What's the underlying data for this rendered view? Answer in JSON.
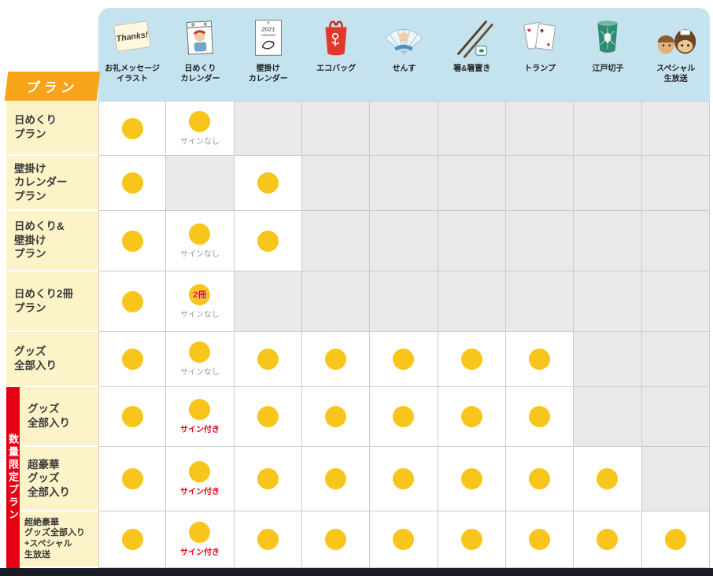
{
  "plan_tag": "プラン",
  "limited_band_label": "数量限定プラン",
  "legend": {
    "no_sign": "サインなし",
    "with_sign": "サイン付き",
    "two_copies": "2冊"
  },
  "colors": {
    "dot": "#F8C51C",
    "accent_red": "#E60012",
    "plan_tag_bg": "#F8A41B",
    "header_bg": "#C5E3EF",
    "row_label_bg": "#FCF3C8",
    "empty_cell_bg": "#E9E9E9",
    "bottom_bar": "#1B1B27"
  },
  "chart_data": {
    "type": "table",
    "columns": [
      {
        "icon": "thanks-note",
        "label_lines": [
          "お礼メッセージ",
          "イラスト"
        ]
      },
      {
        "icon": "daily-calendar",
        "label_lines": [
          "日めくり",
          "カレンダー"
        ]
      },
      {
        "icon": "wall-calendar",
        "label_lines": [
          "壁掛け",
          "カレンダー"
        ]
      },
      {
        "icon": "eco-bag",
        "label_lines": [
          "エコバッグ"
        ]
      },
      {
        "icon": "folding-fan",
        "label_lines": [
          "せんす"
        ]
      },
      {
        "icon": "chopsticks",
        "label_lines": [
          "箸&箸置き"
        ]
      },
      {
        "icon": "playing-cards",
        "label_lines": [
          "トランプ"
        ]
      },
      {
        "icon": "kiriko-glass",
        "label_lines": [
          "江戸切子"
        ]
      },
      {
        "icon": "mascots",
        "label_lines": [
          "スペシャル",
          "生放送"
        ]
      }
    ],
    "rows": [
      {
        "label_lines": [
          "日めくり",
          "プラン"
        ],
        "limited": false,
        "small": false,
        "cells": [
          {
            "dot": true
          },
          {
            "dot": true,
            "note": "サインなし",
            "note_red": false
          },
          null,
          null,
          null,
          null,
          null,
          null,
          null
        ]
      },
      {
        "label_lines": [
          "壁掛け",
          "カレンダー",
          "プラン"
        ],
        "limited": false,
        "small": false,
        "cells": [
          {
            "dot": true
          },
          null,
          {
            "dot": true
          },
          null,
          null,
          null,
          null,
          null,
          null
        ]
      },
      {
        "label_lines": [
          "日めくり&",
          "壁掛け",
          "プラン"
        ],
        "limited": false,
        "small": false,
        "cells": [
          {
            "dot": true
          },
          {
            "dot": true,
            "note": "サインなし",
            "note_red": false
          },
          {
            "dot": true
          },
          null,
          null,
          null,
          null,
          null,
          null
        ]
      },
      {
        "label_lines": [
          "日めくり2冊",
          "プラン"
        ],
        "limited": false,
        "small": false,
        "cells": [
          {
            "dot": true
          },
          {
            "dot": true,
            "badge": "2冊",
            "note": "サインなし",
            "note_red": false
          },
          null,
          null,
          null,
          null,
          null,
          null,
          null
        ]
      },
      {
        "label_lines": [
          "グッズ",
          "全部入り"
        ],
        "limited": false,
        "small": false,
        "cells": [
          {
            "dot": true
          },
          {
            "dot": true,
            "note": "サインなし",
            "note_red": false
          },
          {
            "dot": true
          },
          {
            "dot": true
          },
          {
            "dot": true
          },
          {
            "dot": true
          },
          {
            "dot": true
          },
          null,
          null
        ]
      },
      {
        "label_lines": [
          "グッズ",
          "全部入り"
        ],
        "limited": true,
        "small": false,
        "cells": [
          {
            "dot": true
          },
          {
            "dot": true,
            "note": "サイン付き",
            "note_red": true
          },
          {
            "dot": true
          },
          {
            "dot": true
          },
          {
            "dot": true
          },
          {
            "dot": true
          },
          {
            "dot": true
          },
          null,
          null
        ]
      },
      {
        "label_lines": [
          "超豪華",
          "グッズ",
          "全部入り"
        ],
        "limited": true,
        "small": false,
        "cells": [
          {
            "dot": true
          },
          {
            "dot": true,
            "note": "サイン付き",
            "note_red": true
          },
          {
            "dot": true
          },
          {
            "dot": true
          },
          {
            "dot": true
          },
          {
            "dot": true
          },
          {
            "dot": true
          },
          {
            "dot": true
          },
          null
        ]
      },
      {
        "label_lines": [
          "超絶豪華",
          "グッズ全部入り",
          "+スペシャル",
          "生放送"
        ],
        "limited": true,
        "small": true,
        "cells": [
          {
            "dot": true
          },
          {
            "dot": true,
            "note": "サイン付き",
            "note_red": true
          },
          {
            "dot": true
          },
          {
            "dot": true
          },
          {
            "dot": true
          },
          {
            "dot": true
          },
          {
            "dot": true
          },
          {
            "dot": true
          },
          {
            "dot": true
          }
        ]
      }
    ]
  }
}
